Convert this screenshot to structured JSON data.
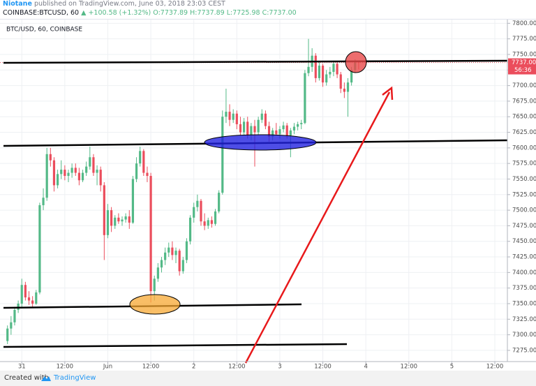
{
  "header": {
    "author": "Niotane",
    "published": "published on TradingView.com, June 03, 2018 23:03 CEST",
    "symbol": "COINBASE:BTCUSD, 60",
    "change": "▲ +100.58 (+1.32%)",
    "open": "O:7737.89",
    "high": "H:7737.89",
    "low": "L:7725.98",
    "close": "C:7737.00"
  },
  "footer": {
    "created": "Created with",
    "brand": "TradingView"
  },
  "chart_data": {
    "type": "candlestick",
    "title": "BTC/USD, 60, COINBASE",
    "up_color": "#53b987",
    "down_color": "#eb4d5c",
    "grid": true,
    "ylim": [
      7257,
      7806
    ],
    "yticks": [
      {
        "value": 7275,
        "label": "7275.00"
      },
      {
        "value": 7300,
        "label": "7300.00"
      },
      {
        "value": 7325,
        "label": "7325.00"
      },
      {
        "value": 7350,
        "label": "7350.00"
      },
      {
        "value": 7375,
        "label": "7375.00"
      },
      {
        "value": 7400,
        "label": "7400.00"
      },
      {
        "value": 7425,
        "label": "7425.00"
      },
      {
        "value": 7450,
        "label": "7450.00"
      },
      {
        "value": 7475,
        "label": "7475.00"
      },
      {
        "value": 7500,
        "label": "7500.00"
      },
      {
        "value": 7525,
        "label": "7525.00"
      },
      {
        "value": 7550,
        "label": "7550.00"
      },
      {
        "value": 7575,
        "label": "7575.00"
      },
      {
        "value": 7600,
        "label": "7600.00"
      },
      {
        "value": 7625,
        "label": "7625.00"
      },
      {
        "value": 7650,
        "label": "7650.00"
      },
      {
        "value": 7675,
        "label": "7675.00"
      },
      {
        "value": 7700,
        "label": "7700.00"
      },
      {
        "value": 7725,
        "label": "7725.00"
      },
      {
        "value": 7750,
        "label": "7750.00"
      },
      {
        "value": 7775,
        "label": "7775.00"
      },
      {
        "value": 7800,
        "label": "7800.00"
      }
    ],
    "last_price": {
      "value": 7737,
      "label": "7737.00"
    },
    "countdown": "56:36",
    "categories": [
      null,
      null,
      null,
      null,
      null,
      "31",
      null,
      null,
      null,
      null,
      null,
      null,
      null,
      null,
      null,
      null,
      null,
      "12:00",
      null,
      null,
      null,
      null,
      null,
      null,
      null,
      null,
      null,
      null,
      null,
      "Jun",
      null,
      null,
      null,
      null,
      null,
      null,
      null,
      null,
      null,
      null,
      null,
      "12:00",
      null,
      null,
      null,
      null,
      null,
      null,
      null,
      null,
      null,
      null,
      null,
      "2",
      null,
      null,
      null,
      null,
      null,
      null,
      null,
      null,
      null,
      null,
      null,
      "12:00",
      null,
      null,
      null,
      null,
      null,
      null,
      null,
      null,
      null,
      null,
      null,
      "3",
      null,
      null,
      null,
      null,
      null,
      null,
      null,
      null,
      null,
      null,
      null,
      "12:00",
      null,
      null,
      null,
      null,
      null,
      null,
      null,
      null,
      null,
      null,
      null,
      "4",
      null,
      null,
      null,
      null,
      null,
      null,
      null,
      null,
      null,
      null,
      null,
      "12:00",
      null,
      null,
      null,
      null,
      null,
      null,
      null,
      null,
      null,
      null,
      null,
      "5",
      null,
      null,
      null,
      null,
      null,
      null,
      null,
      null,
      null,
      null,
      null,
      "12:00",
      null,
      null,
      null
    ],
    "ohlc": [
      null,
      [
        7290,
        7315,
        7285,
        7310
      ],
      [
        7310,
        7330,
        7300,
        7320
      ],
      [
        7320,
        7345,
        7315,
        7340
      ],
      [
        7340,
        7355,
        7335,
        7350
      ],
      [
        7350,
        7390,
        7345,
        7380
      ],
      [
        7380,
        7385,
        7355,
        7360
      ],
      [
        7360,
        7370,
        7348,
        7355
      ],
      [
        7355,
        7362,
        7345,
        7350
      ],
      [
        7350,
        7372,
        7348,
        7368
      ],
      [
        7368,
        7512,
        7365,
        7508
      ],
      [
        7508,
        7535,
        7500,
        7520
      ],
      [
        7520,
        7600,
        7515,
        7590
      ],
      [
        7590,
        7600,
        7570,
        7580
      ],
      [
        7580,
        7585,
        7530,
        7540
      ],
      [
        7540,
        7565,
        7535,
        7558
      ],
      [
        7558,
        7580,
        7550,
        7565
      ],
      [
        7565,
        7572,
        7548,
        7555
      ],
      [
        7555,
        7565,
        7545,
        7560
      ],
      [
        7560,
        7575,
        7552,
        7568
      ],
      [
        7568,
        7575,
        7555,
        7560
      ],
      [
        7560,
        7568,
        7540,
        7548
      ],
      [
        7548,
        7565,
        7545,
        7560
      ],
      [
        7560,
        7578,
        7555,
        7570
      ],
      [
        7570,
        7602,
        7565,
        7585
      ],
      [
        7585,
        7590,
        7555,
        7560
      ],
      [
        7560,
        7572,
        7540,
        7565
      ],
      [
        7565,
        7570,
        7530,
        7540
      ],
      [
        7540,
        7545,
        7420,
        7460
      ],
      [
        7460,
        7510,
        7455,
        7500
      ],
      [
        7500,
        7505,
        7465,
        7475
      ],
      [
        7475,
        7492,
        7470,
        7488
      ],
      [
        7488,
        7495,
        7478,
        7482
      ],
      [
        7482,
        7490,
        7475,
        7485
      ],
      [
        7485,
        7495,
        7480,
        7490
      ],
      [
        7490,
        7500,
        7470,
        7480
      ],
      [
        7480,
        7555,
        7478,
        7550
      ],
      [
        7550,
        7585,
        7545,
        7575
      ],
      [
        7575,
        7602,
        7570,
        7595
      ],
      [
        7595,
        7598,
        7555,
        7560
      ],
      [
        7560,
        7570,
        7545,
        7555
      ],
      [
        7555,
        7560,
        7352,
        7370
      ],
      [
        7370,
        7395,
        7355,
        7390
      ],
      [
        7390,
        7415,
        7385,
        7408
      ],
      [
        7408,
        7425,
        7400,
        7420
      ],
      [
        7420,
        7440,
        7412,
        7432
      ],
      [
        7432,
        7448,
        7425,
        7440
      ],
      [
        7440,
        7450,
        7420,
        7428
      ],
      [
        7428,
        7440,
        7415,
        7435
      ],
      [
        7435,
        7438,
        7395,
        7402
      ],
      [
        7402,
        7425,
        7398,
        7420
      ],
      [
        7420,
        7455,
        7415,
        7450
      ],
      [
        7450,
        7492,
        7445,
        7488
      ],
      [
        7488,
        7512,
        7480,
        7505
      ],
      [
        7505,
        7525,
        7498,
        7515
      ],
      [
        7515,
        7518,
        7475,
        7482
      ],
      [
        7482,
        7495,
        7468,
        7475
      ],
      [
        7475,
        7488,
        7470,
        7484
      ],
      [
        7484,
        7490,
        7472,
        7478
      ],
      [
        7478,
        7502,
        7475,
        7498
      ],
      [
        7498,
        7532,
        7495,
        7528
      ],
      [
        7528,
        7660,
        7525,
        7650
      ],
      [
        7650,
        7695,
        7640,
        7658
      ],
      [
        7658,
        7670,
        7635,
        7645
      ],
      [
        7645,
        7662,
        7640,
        7655
      ],
      [
        7655,
        7660,
        7630,
        7638
      ],
      [
        7638,
        7650,
        7620,
        7625
      ],
      [
        7625,
        7648,
        7620,
        7642
      ],
      [
        7642,
        7650,
        7615,
        7620
      ],
      [
        7620,
        7640,
        7612,
        7635
      ],
      [
        7635,
        7645,
        7570,
        7625
      ],
      [
        7625,
        7650,
        7620,
        7645
      ],
      [
        7645,
        7662,
        7640,
        7655
      ],
      [
        7655,
        7660,
        7630,
        7635
      ],
      [
        7635,
        7642,
        7610,
        7618
      ],
      [
        7618,
        7632,
        7612,
        7628
      ],
      [
        7628,
        7640,
        7620,
        7622
      ],
      [
        7622,
        7635,
        7615,
        7630
      ],
      [
        7630,
        7642,
        7625,
        7636
      ],
      [
        7636,
        7640,
        7615,
        7620
      ],
      [
        7620,
        7632,
        7585,
        7628
      ],
      [
        7628,
        7640,
        7622,
        7634
      ],
      [
        7634,
        7642,
        7628,
        7638
      ],
      [
        7638,
        7645,
        7630,
        7640
      ],
      [
        7640,
        7725,
        7638,
        7720
      ],
      [
        7720,
        7775,
        7715,
        7730
      ],
      [
        7730,
        7760,
        7722,
        7748
      ],
      [
        7748,
        7752,
        7705,
        7712
      ],
      [
        7712,
        7738,
        7708,
        7732
      ],
      [
        7732,
        7735,
        7698,
        7705
      ],
      [
        7705,
        7725,
        7700,
        7718
      ],
      [
        7718,
        7730,
        7712,
        7722
      ],
      [
        7722,
        7740,
        7715,
        7735
      ],
      [
        7735,
        7738,
        7712,
        7718
      ],
      [
        7718,
        7722,
        7688,
        7695
      ],
      [
        7695,
        7705,
        7680,
        7690
      ],
      [
        7690,
        7712,
        7650,
        7705
      ],
      [
        7705,
        7730,
        7700,
        7725
      ],
      [
        7725,
        7742,
        7720,
        7737.89
      ],
      [
        7737.89,
        7737.89,
        7725.98,
        7737
      ],
      null,
      null,
      null,
      null,
      null,
      null,
      null,
      null,
      null,
      null,
      null,
      null,
      null,
      null,
      null,
      null,
      null,
      null,
      null,
      null,
      null,
      null,
      null,
      null,
      null,
      null,
      null,
      null,
      null,
      null,
      null,
      null,
      null,
      null,
      null,
      null,
      null,
      null,
      null,
      null,
      null
    ]
  }
}
